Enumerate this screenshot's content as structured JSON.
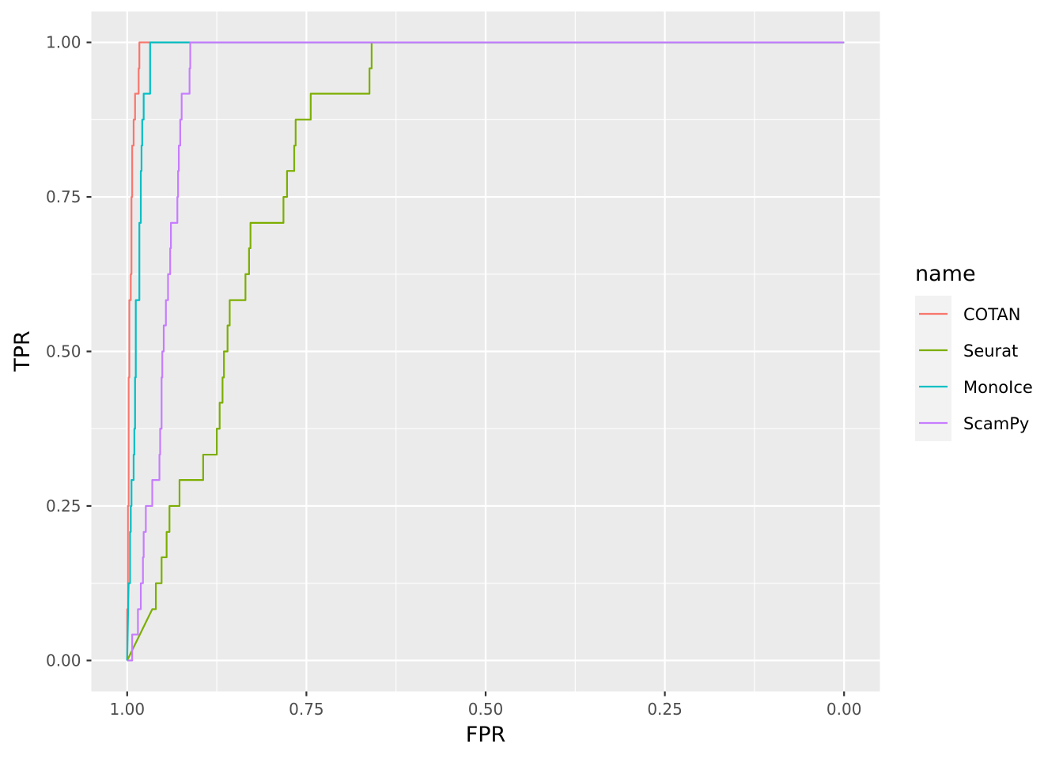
{
  "chart_data": {
    "type": "line",
    "xlabel": "FPR",
    "ylabel": "TPR",
    "x_reversed": true,
    "xlim": [
      1.0,
      0.0
    ],
    "ylim": [
      0.0,
      1.0
    ],
    "x_ticks": [
      1.0,
      0.75,
      0.5,
      0.25,
      0.0
    ],
    "x_tick_labels": [
      "1.00",
      "0.75",
      "0.50",
      "0.25",
      "0.00"
    ],
    "y_ticks": [
      0.0,
      0.25,
      0.5,
      0.75,
      1.0
    ],
    "y_tick_labels": [
      "0.00",
      "0.25",
      "0.50",
      "0.75",
      "1.00"
    ],
    "grid": true,
    "legend": {
      "title": "name",
      "placement": "right",
      "entries": [
        "COTAN",
        "Seurat",
        "MonoIce",
        "ScamPy"
      ]
    },
    "series": [
      {
        "name": "COTAN",
        "color": "#F8766D",
        "points": [
          [
            1.0,
            0.0
          ],
          [
            1.0,
            0.083
          ],
          [
            0.999,
            0.083
          ],
          [
            0.999,
            0.25
          ],
          [
            0.998,
            0.25
          ],
          [
            0.998,
            0.458
          ],
          [
            0.997,
            0.458
          ],
          [
            0.997,
            0.583
          ],
          [
            0.995,
            0.583
          ],
          [
            0.995,
            0.625
          ],
          [
            0.994,
            0.625
          ],
          [
            0.994,
            0.75
          ],
          [
            0.993,
            0.75
          ],
          [
            0.993,
            0.833
          ],
          [
            0.991,
            0.833
          ],
          [
            0.991,
            0.875
          ],
          [
            0.989,
            0.875
          ],
          [
            0.989,
            0.917
          ],
          [
            0.984,
            0.917
          ],
          [
            0.984,
            0.958
          ],
          [
            0.983,
            0.958
          ],
          [
            0.983,
            1.0
          ],
          [
            0.978,
            1.0
          ],
          [
            0.0,
            1.0
          ]
        ]
      },
      {
        "name": "Seurat",
        "color": "#7CAE00",
        "points": [
          [
            1.0,
            0.0
          ],
          [
            0.965,
            0.083
          ],
          [
            0.96,
            0.083
          ],
          [
            0.96,
            0.125
          ],
          [
            0.952,
            0.125
          ],
          [
            0.952,
            0.167
          ],
          [
            0.945,
            0.167
          ],
          [
            0.945,
            0.208
          ],
          [
            0.941,
            0.208
          ],
          [
            0.941,
            0.25
          ],
          [
            0.927,
            0.25
          ],
          [
            0.927,
            0.292
          ],
          [
            0.894,
            0.292
          ],
          [
            0.894,
            0.333
          ],
          [
            0.875,
            0.333
          ],
          [
            0.875,
            0.375
          ],
          [
            0.871,
            0.375
          ],
          [
            0.871,
            0.417
          ],
          [
            0.867,
            0.417
          ],
          [
            0.867,
            0.458
          ],
          [
            0.865,
            0.458
          ],
          [
            0.865,
            0.5
          ],
          [
            0.86,
            0.5
          ],
          [
            0.86,
            0.542
          ],
          [
            0.857,
            0.542
          ],
          [
            0.857,
            0.583
          ],
          [
            0.835,
            0.583
          ],
          [
            0.835,
            0.625
          ],
          [
            0.83,
            0.625
          ],
          [
            0.83,
            0.667
          ],
          [
            0.828,
            0.667
          ],
          [
            0.828,
            0.708
          ],
          [
            0.782,
            0.708
          ],
          [
            0.782,
            0.75
          ],
          [
            0.777,
            0.75
          ],
          [
            0.777,
            0.792
          ],
          [
            0.767,
            0.792
          ],
          [
            0.767,
            0.833
          ],
          [
            0.765,
            0.833
          ],
          [
            0.765,
            0.875
          ],
          [
            0.744,
            0.875
          ],
          [
            0.744,
            0.917
          ],
          [
            0.662,
            0.917
          ],
          [
            0.662,
            0.958
          ],
          [
            0.659,
            0.958
          ],
          [
            0.659,
            1.0
          ],
          [
            0.0,
            1.0
          ]
        ]
      },
      {
        "name": "MonoIce",
        "color": "#00BFC4",
        "points": [
          [
            1.0,
            0.0
          ],
          [
            0.998,
            0.125
          ],
          [
            0.996,
            0.125
          ],
          [
            0.996,
            0.208
          ],
          [
            0.995,
            0.208
          ],
          [
            0.995,
            0.25
          ],
          [
            0.994,
            0.25
          ],
          [
            0.994,
            0.292
          ],
          [
            0.991,
            0.292
          ],
          [
            0.991,
            0.333
          ],
          [
            0.99,
            0.333
          ],
          [
            0.99,
            0.375
          ],
          [
            0.989,
            0.375
          ],
          [
            0.989,
            0.458
          ],
          [
            0.988,
            0.458
          ],
          [
            0.988,
            0.583
          ],
          [
            0.983,
            0.583
          ],
          [
            0.983,
            0.708
          ],
          [
            0.981,
            0.708
          ],
          [
            0.981,
            0.792
          ],
          [
            0.98,
            0.792
          ],
          [
            0.98,
            0.833
          ],
          [
            0.979,
            0.833
          ],
          [
            0.979,
            0.875
          ],
          [
            0.977,
            0.875
          ],
          [
            0.977,
            0.917
          ],
          [
            0.968,
            0.917
          ],
          [
            0.968,
            1.0
          ],
          [
            0.0,
            1.0
          ]
        ]
      },
      {
        "name": "ScamPy",
        "color": "#C77CFF",
        "points": [
          [
            1.0,
            0.0
          ],
          [
            0.993,
            0.0
          ],
          [
            0.993,
            0.042
          ],
          [
            0.985,
            0.042
          ],
          [
            0.985,
            0.083
          ],
          [
            0.981,
            0.083
          ],
          [
            0.981,
            0.125
          ],
          [
            0.978,
            0.125
          ],
          [
            0.978,
            0.167
          ],
          [
            0.977,
            0.167
          ],
          [
            0.977,
            0.208
          ],
          [
            0.974,
            0.208
          ],
          [
            0.974,
            0.25
          ],
          [
            0.965,
            0.25
          ],
          [
            0.965,
            0.292
          ],
          [
            0.955,
            0.292
          ],
          [
            0.955,
            0.333
          ],
          [
            0.954,
            0.333
          ],
          [
            0.954,
            0.375
          ],
          [
            0.952,
            0.375
          ],
          [
            0.952,
            0.458
          ],
          [
            0.951,
            0.458
          ],
          [
            0.951,
            0.5
          ],
          [
            0.949,
            0.5
          ],
          [
            0.949,
            0.542
          ],
          [
            0.946,
            0.542
          ],
          [
            0.946,
            0.583
          ],
          [
            0.943,
            0.583
          ],
          [
            0.943,
            0.625
          ],
          [
            0.94,
            0.625
          ],
          [
            0.94,
            0.667
          ],
          [
            0.939,
            0.667
          ],
          [
            0.939,
            0.708
          ],
          [
            0.93,
            0.708
          ],
          [
            0.93,
            0.75
          ],
          [
            0.929,
            0.75
          ],
          [
            0.929,
            0.792
          ],
          [
            0.928,
            0.792
          ],
          [
            0.928,
            0.833
          ],
          [
            0.926,
            0.833
          ],
          [
            0.926,
            0.875
          ],
          [
            0.924,
            0.875
          ],
          [
            0.924,
            0.917
          ],
          [
            0.913,
            0.917
          ],
          [
            0.913,
            0.958
          ],
          [
            0.912,
            0.958
          ],
          [
            0.912,
            1.0
          ],
          [
            0.0,
            1.0
          ]
        ]
      }
    ]
  }
}
